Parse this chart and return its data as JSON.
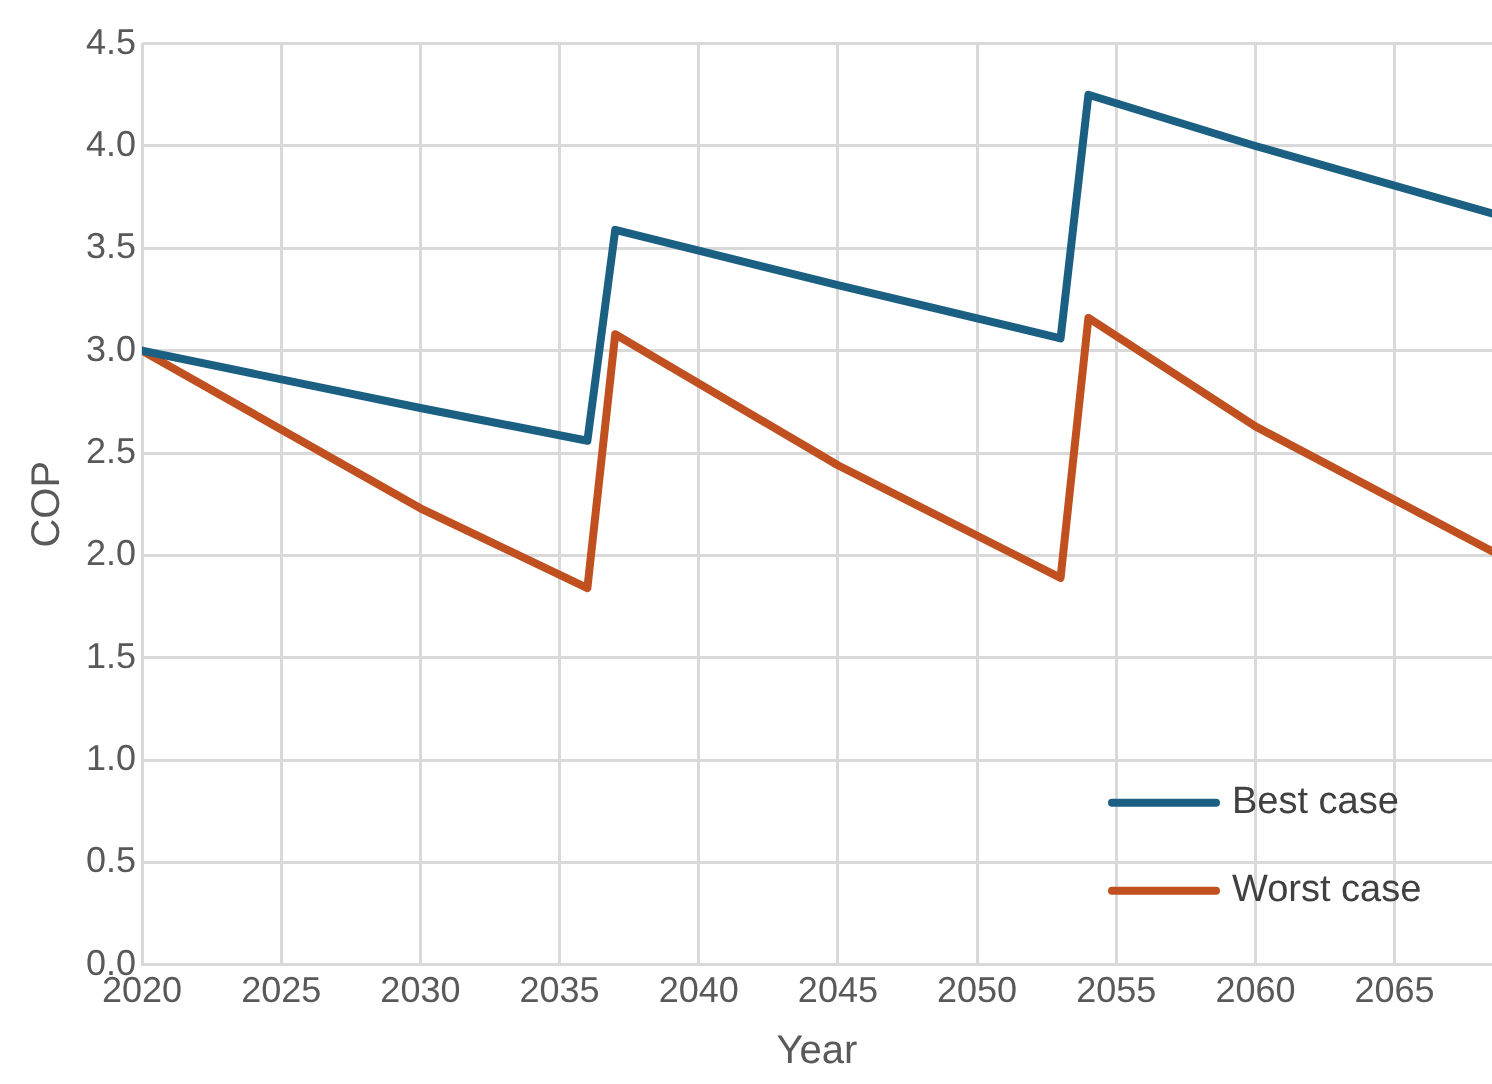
{
  "chart_data": {
    "type": "line",
    "xlabel": "Year",
    "ylabel": "COP",
    "xlim": [
      2020,
      2068.5
    ],
    "xticks": [
      2020,
      2025,
      2030,
      2035,
      2040,
      2045,
      2050,
      2055,
      2060,
      2065
    ],
    "ylim": [
      0,
      4.5
    ],
    "yticks": [
      {
        "value": 0,
        "label": "0.0"
      },
      0.5,
      {
        "value": 1,
        "label": "1.0"
      },
      1.5,
      {
        "value": 2,
        "label": "2.0"
      },
      2.5,
      {
        "value": 3,
        "label": "3.0"
      },
      3.5,
      {
        "value": 4,
        "label": "4.0"
      },
      4.5
    ],
    "grid": true,
    "legend": "bottom right",
    "marker": "none",
    "line_style": "solid",
    "series": [
      {
        "name": "Best case",
        "color": "#1b6083",
        "x": [
          2020,
          2030,
          2036,
          2037,
          2045,
          2053,
          2054,
          2060,
          2068.5
        ],
        "values": [
          3.0,
          2.72,
          2.56,
          3.59,
          3.32,
          3.06,
          4.25,
          4.0,
          3.67
        ]
      },
      {
        "name": "Worst case",
        "color": "#c0501f",
        "x": [
          2020,
          2030,
          2036,
          2037,
          2045,
          2053,
          2054,
          2060,
          2068.5
        ],
        "values": [
          3.0,
          2.23,
          1.84,
          3.08,
          2.44,
          1.89,
          3.16,
          2.63,
          2.02
        ]
      }
    ]
  }
}
